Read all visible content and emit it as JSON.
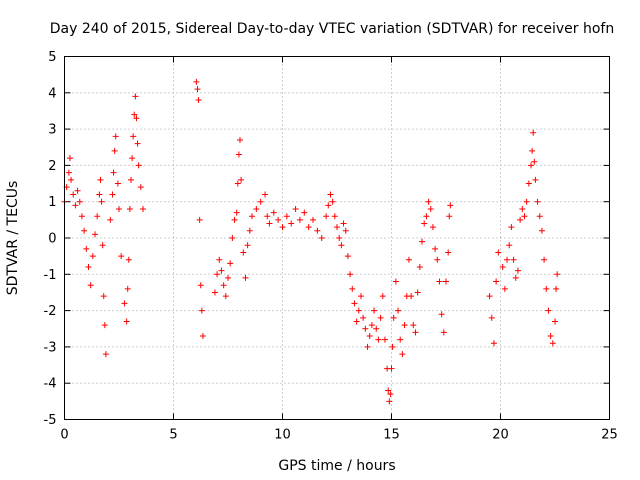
{
  "chart_data": {
    "type": "scatter",
    "title": "Day 240 of 2015, Sidereal Day-to-day VTEC variation (SDTVAR) for receiver hofn",
    "xlabel": "GPS time / hours",
    "ylabel": "SDTVAR / TECUs",
    "xlim": [
      0,
      25
    ],
    "ylim": [
      -5,
      5
    ],
    "xticks": [
      "0",
      "5",
      "10",
      "15",
      "20",
      "25"
    ],
    "yticks": [
      "-5",
      "-4",
      "-3",
      "-2",
      "-1",
      "0",
      "1",
      "2",
      "3",
      "4",
      "5"
    ],
    "grid": true,
    "marker": "+",
    "color": "#ff0000",
    "series": [
      {
        "name": "SDTVAR",
        "points": [
          [
            0.0,
            1.0
          ],
          [
            0.1,
            1.4
          ],
          [
            0.2,
            1.8
          ],
          [
            0.25,
            2.2
          ],
          [
            0.3,
            1.6
          ],
          [
            0.4,
            1.2
          ],
          [
            0.5,
            0.9
          ],
          [
            0.6,
            1.3
          ],
          [
            0.7,
            1.0
          ],
          [
            0.8,
            0.6
          ],
          [
            0.9,
            0.2
          ],
          [
            1.0,
            -0.3
          ],
          [
            1.1,
            -0.8
          ],
          [
            1.2,
            -1.3
          ],
          [
            1.3,
            -0.5
          ],
          [
            1.4,
            0.1
          ],
          [
            1.5,
            0.6
          ],
          [
            1.6,
            1.2
          ],
          [
            1.65,
            1.6
          ],
          [
            1.7,
            1.0
          ],
          [
            1.75,
            -0.2
          ],
          [
            1.8,
            -1.6
          ],
          [
            1.85,
            -2.4
          ],
          [
            1.9,
            -3.2
          ],
          [
            2.1,
            0.5
          ],
          [
            2.2,
            1.2
          ],
          [
            2.25,
            1.8
          ],
          [
            2.3,
            2.4
          ],
          [
            2.35,
            2.8
          ],
          [
            2.45,
            1.5
          ],
          [
            2.5,
            0.8
          ],
          [
            2.6,
            -0.5
          ],
          [
            2.75,
            -1.8
          ],
          [
            2.85,
            -2.3
          ],
          [
            2.9,
            -1.4
          ],
          [
            2.95,
            -0.6
          ],
          [
            3.0,
            0.8
          ],
          [
            3.05,
            1.6
          ],
          [
            3.1,
            2.2
          ],
          [
            3.15,
            2.8
          ],
          [
            3.2,
            3.4
          ],
          [
            3.25,
            3.9
          ],
          [
            3.3,
            3.3
          ],
          [
            3.35,
            2.6
          ],
          [
            3.4,
            2.0
          ],
          [
            3.5,
            1.4
          ],
          [
            3.6,
            0.8
          ],
          [
            6.05,
            4.3
          ],
          [
            6.1,
            4.1
          ],
          [
            6.15,
            3.8
          ],
          [
            6.2,
            0.5
          ],
          [
            6.25,
            -1.3
          ],
          [
            6.3,
            -2.0
          ],
          [
            6.35,
            -2.7
          ],
          [
            6.9,
            -1.5
          ],
          [
            7.0,
            -1.0
          ],
          [
            7.1,
            -0.6
          ],
          [
            7.2,
            -0.9
          ],
          [
            7.3,
            -1.3
          ],
          [
            7.4,
            -1.6
          ],
          [
            7.5,
            -1.1
          ],
          [
            7.6,
            -0.7
          ],
          [
            7.7,
            0.0
          ],
          [
            7.8,
            0.5
          ],
          [
            7.9,
            0.7
          ],
          [
            7.95,
            1.5
          ],
          [
            8.0,
            2.3
          ],
          [
            8.05,
            2.7
          ],
          [
            8.1,
            1.6
          ],
          [
            8.2,
            -0.4
          ],
          [
            8.3,
            -1.1
          ],
          [
            8.4,
            -0.2
          ],
          [
            8.5,
            0.2
          ],
          [
            8.6,
            0.6
          ],
          [
            8.8,
            0.8
          ],
          [
            9.0,
            1.0
          ],
          [
            9.2,
            1.2
          ],
          [
            9.3,
            0.6
          ],
          [
            9.4,
            0.4
          ],
          [
            9.6,
            0.7
          ],
          [
            9.8,
            0.5
          ],
          [
            10.0,
            0.3
          ],
          [
            10.2,
            0.6
          ],
          [
            10.4,
            0.4
          ],
          [
            10.6,
            0.8
          ],
          [
            10.8,
            0.5
          ],
          [
            11.0,
            0.7
          ],
          [
            11.2,
            0.3
          ],
          [
            11.4,
            0.5
          ],
          [
            11.6,
            0.2
          ],
          [
            11.8,
            0.0
          ],
          [
            12.0,
            0.6
          ],
          [
            12.1,
            0.9
          ],
          [
            12.2,
            1.2
          ],
          [
            12.3,
            1.0
          ],
          [
            12.4,
            0.6
          ],
          [
            12.5,
            0.3
          ],
          [
            12.6,
            0.0
          ],
          [
            12.7,
            -0.2
          ],
          [
            12.8,
            0.4
          ],
          [
            12.9,
            0.2
          ],
          [
            13.0,
            -0.5
          ],
          [
            13.1,
            -1.0
          ],
          [
            13.2,
            -1.4
          ],
          [
            13.3,
            -1.8
          ],
          [
            13.4,
            -2.3
          ],
          [
            13.5,
            -2.0
          ],
          [
            13.6,
            -1.6
          ],
          [
            13.7,
            -2.2
          ],
          [
            13.8,
            -2.5
          ],
          [
            13.9,
            -3.0
          ],
          [
            14.0,
            -2.7
          ],
          [
            14.1,
            -2.4
          ],
          [
            14.2,
            -2.0
          ],
          [
            14.3,
            -2.5
          ],
          [
            14.4,
            -2.8
          ],
          [
            14.5,
            -2.2
          ],
          [
            14.6,
            -1.6
          ],
          [
            14.7,
            -2.8
          ],
          [
            14.8,
            -3.6
          ],
          [
            14.85,
            -4.2
          ],
          [
            14.9,
            -4.5
          ],
          [
            14.95,
            -4.3
          ],
          [
            15.0,
            -3.6
          ],
          [
            15.05,
            -3.0
          ],
          [
            15.1,
            -2.2
          ],
          [
            15.2,
            -1.2
          ],
          [
            15.3,
            -2.0
          ],
          [
            15.4,
            -2.8
          ],
          [
            15.5,
            -3.2
          ],
          [
            15.6,
            -2.4
          ],
          [
            15.7,
            -1.6
          ],
          [
            15.8,
            -0.6
          ],
          [
            15.9,
            -1.6
          ],
          [
            16.0,
            -2.4
          ],
          [
            16.1,
            -2.6
          ],
          [
            16.2,
            -1.5
          ],
          [
            16.3,
            -0.8
          ],
          [
            16.4,
            -0.1
          ],
          [
            16.5,
            0.4
          ],
          [
            16.6,
            0.6
          ],
          [
            16.7,
            1.0
          ],
          [
            16.8,
            0.8
          ],
          [
            16.9,
            0.3
          ],
          [
            17.0,
            -0.3
          ],
          [
            17.1,
            -0.6
          ],
          [
            17.2,
            -1.2
          ],
          [
            17.3,
            -2.1
          ],
          [
            17.4,
            -2.6
          ],
          [
            17.5,
            -1.2
          ],
          [
            17.6,
            -0.4
          ],
          [
            17.65,
            0.6
          ],
          [
            17.7,
            0.9
          ],
          [
            19.5,
            -1.6
          ],
          [
            19.6,
            -2.2
          ],
          [
            19.7,
            -2.9
          ],
          [
            19.8,
            -1.2
          ],
          [
            19.9,
            -0.4
          ],
          [
            20.1,
            -0.8
          ],
          [
            20.2,
            -1.4
          ],
          [
            20.3,
            -0.6
          ],
          [
            20.4,
            -0.2
          ],
          [
            20.5,
            0.3
          ],
          [
            20.6,
            -0.6
          ],
          [
            20.7,
            -1.1
          ],
          [
            20.8,
            -0.9
          ],
          [
            20.9,
            0.5
          ],
          [
            21.0,
            0.8
          ],
          [
            21.1,
            0.6
          ],
          [
            21.2,
            1.0
          ],
          [
            21.3,
            1.5
          ],
          [
            21.4,
            2.0
          ],
          [
            21.45,
            2.4
          ],
          [
            21.5,
            2.9
          ],
          [
            21.55,
            2.1
          ],
          [
            21.6,
            1.6
          ],
          [
            21.7,
            1.0
          ],
          [
            21.8,
            0.6
          ],
          [
            21.9,
            0.2
          ],
          [
            22.0,
            -0.6
          ],
          [
            22.1,
            -1.4
          ],
          [
            22.2,
            -2.0
          ],
          [
            22.3,
            -2.7
          ],
          [
            22.4,
            -2.9
          ],
          [
            22.5,
            -2.3
          ],
          [
            22.55,
            -1.4
          ],
          [
            22.6,
            -1.0
          ]
        ]
      }
    ]
  }
}
